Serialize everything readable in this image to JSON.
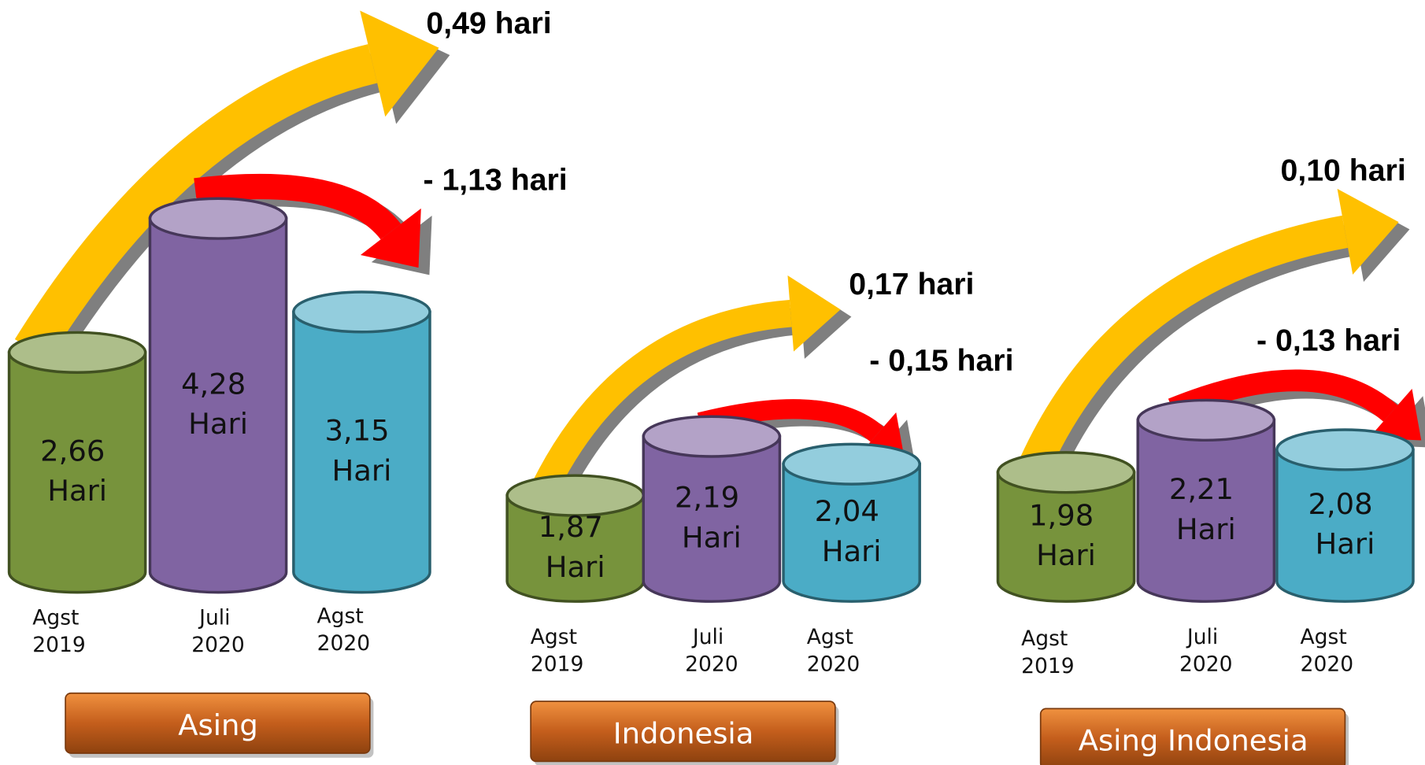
{
  "chart_data": [
    {
      "type": "bar",
      "title": "Asing",
      "categories": [
        "Agst 2019",
        "Juli 2020",
        "Agst 2020"
      ],
      "values": [
        2.66,
        4.28,
        3.15
      ],
      "value_labels": [
        "2,66 Hari",
        "4,28 Hari",
        "3,15 Hari"
      ],
      "colors": [
        "#77933c",
        "#8064a2",
        "#4bacc6"
      ],
      "annotations": [
        "0,49 hari",
        "- 1,13 hari"
      ]
    },
    {
      "type": "bar",
      "title": "Indonesia",
      "categories": [
        "Agst 2019",
        "Juli 2020",
        "Agst 2020"
      ],
      "values": [
        1.87,
        2.19,
        2.04
      ],
      "value_labels": [
        "1,87 Hari",
        "2,19 Hari",
        "2,04 Hari"
      ],
      "colors": [
        "#77933c",
        "#8064a2",
        "#4bacc6"
      ],
      "annotations": [
        "0,17 hari",
        "- 0,15 hari"
      ]
    },
    {
      "type": "bar",
      "title": "Asing Indonesia",
      "categories": [
        "Agst 2019",
        "Juli 2020",
        "Agst 2020"
      ],
      "values": [
        1.98,
        2.21,
        2.08
      ],
      "value_labels": [
        "1,98 Hari",
        "2,21 Hari",
        "2,08 Hari"
      ],
      "colors": [
        "#77933c",
        "#8064a2",
        "#4bacc6"
      ],
      "annotations": [
        "0,10 hari",
        "- 0,13 hari"
      ]
    }
  ]
}
